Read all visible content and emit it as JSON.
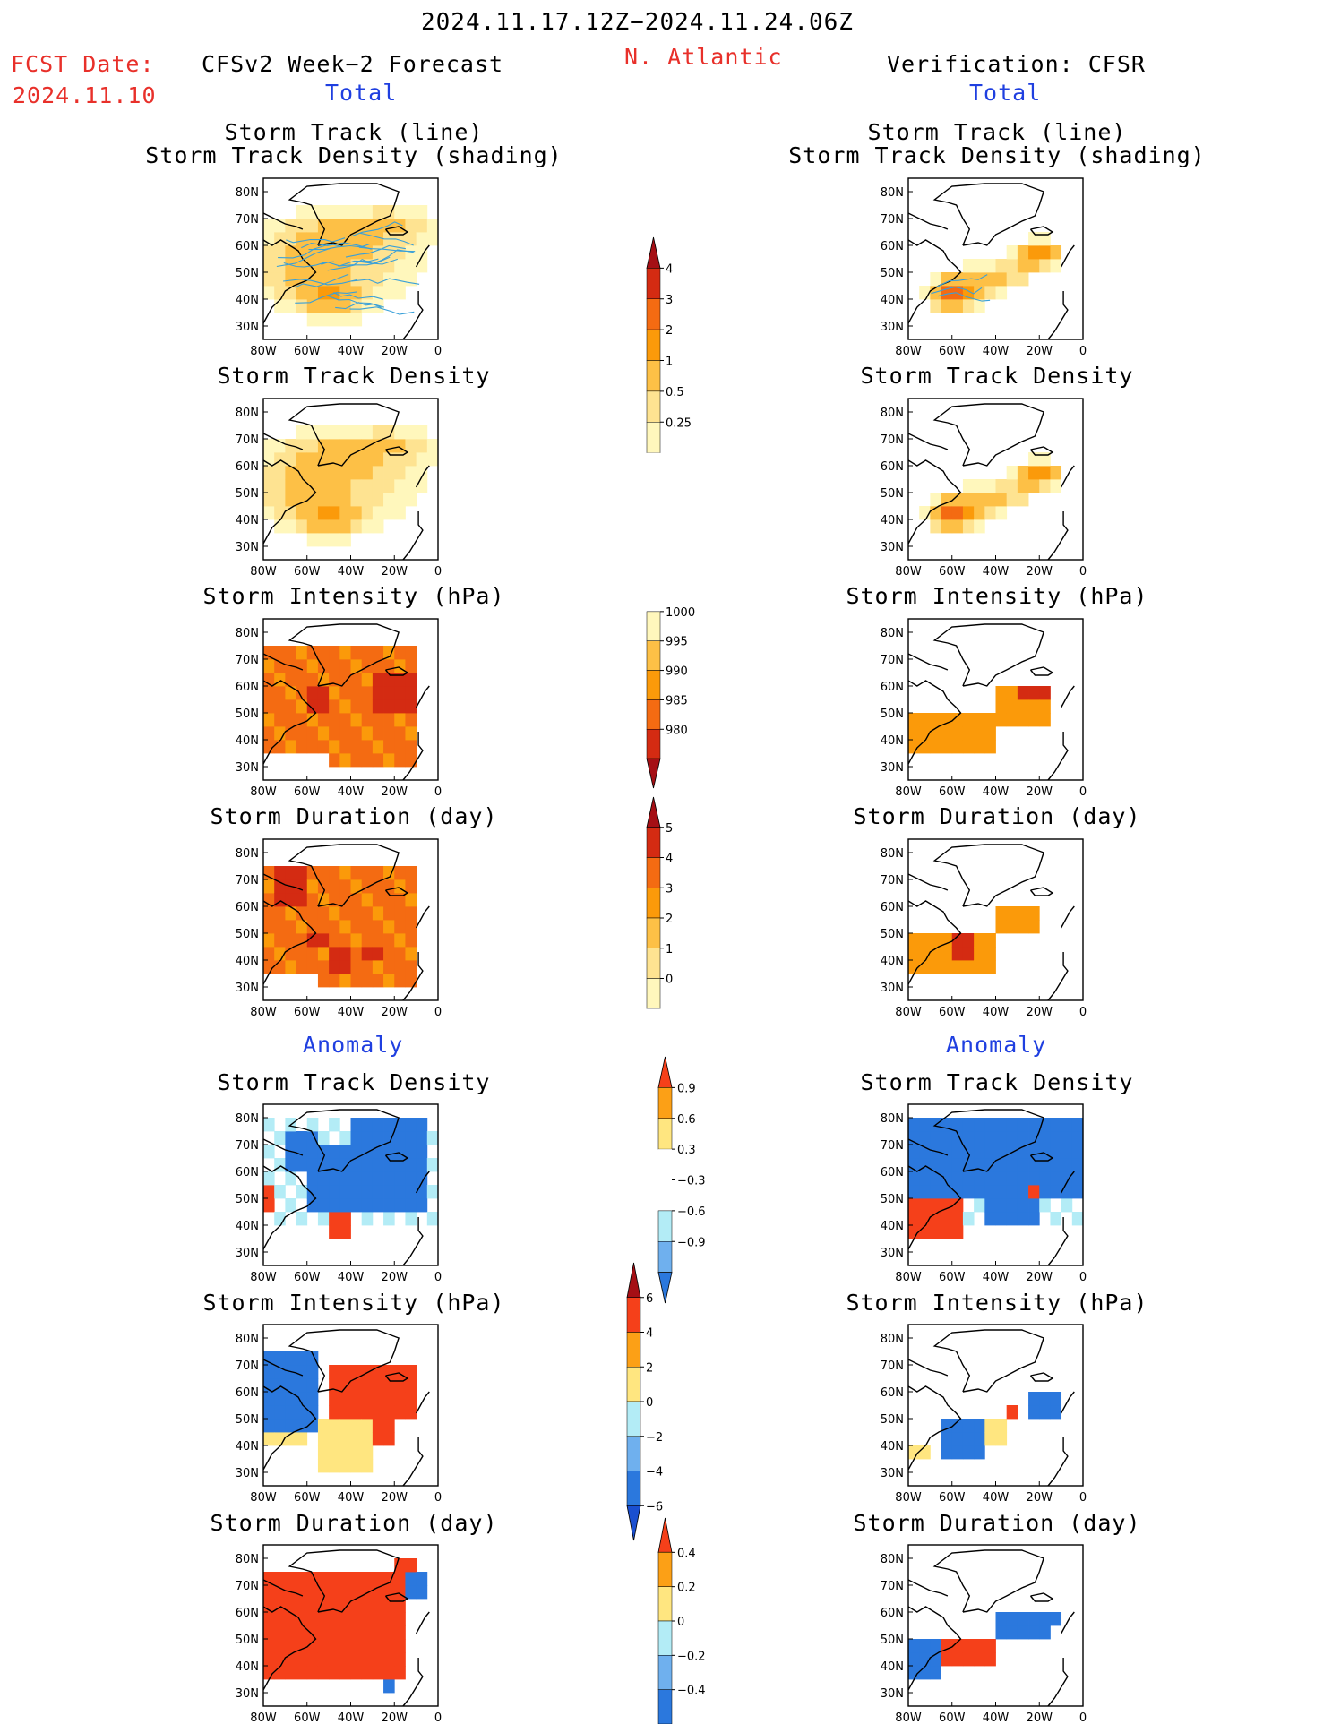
{
  "header": {
    "period": "2024.11.17.12Z−2024.11.24.06Z",
    "fcst_label": "FCST Date:",
    "fcst_date": "2024.11.10",
    "model_title": "CFSv2 Week−2 Forecast",
    "region": "N. Atlantic",
    "verification_title": "Verification: CFSR",
    "total_left": "Total",
    "total_right": "Total",
    "anomaly_left": "Anomaly",
    "anomaly_right": "Anomaly"
  },
  "panel_titles": {
    "track_line": "Storm Track (line)",
    "track_density_shading": "Storm Track Density (shading)",
    "track_density": "Storm Track Density",
    "intensity": "Storm Intensity (hPa)",
    "duration": "Storm Duration (day)"
  },
  "map_axes": {
    "lat_labels": [
      "80N",
      "70N",
      "60N",
      "50N",
      "40N",
      "30N"
    ],
    "lon_labels": [
      "80W",
      "60W",
      "40W",
      "20W",
      "0"
    ]
  },
  "colors": {
    "total": [
      "#fff7bc",
      "#fee391",
      "#fdc046",
      "#fb9a0a",
      "#f46b12",
      "#d42b12",
      "#a50f15"
    ],
    "anom_pos": [
      "#ffe680",
      "#fca016",
      "#f5401a",
      "#a50f15"
    ],
    "anom_neg": [
      "#b3ecf6",
      "#6fb0ee",
      "#2b78dd",
      "#1a4fd0"
    ]
  },
  "colorbars": [
    {
      "id": "total-density",
      "ticks": [
        "4",
        "3",
        "2",
        "1",
        "0.5",
        "0.25"
      ]
    },
    {
      "id": "total-intensity",
      "ticks": [
        "1000",
        "995",
        "990",
        "985",
        "980"
      ]
    },
    {
      "id": "total-duration",
      "ticks": [
        "5",
        "4",
        "3",
        "2",
        "1",
        "0"
      ]
    },
    {
      "id": "anom-density",
      "ticks": [
        "0.9",
        "0.6",
        "0.3",
        "−0.3",
        "−0.6",
        "−0.9"
      ]
    },
    {
      "id": "anom-intensity",
      "ticks": [
        "6",
        "4",
        "2",
        "0",
        "−2",
        "−4",
        "−6"
      ]
    },
    {
      "id": "anom-duration",
      "ticks": [
        "0.4",
        "0.2",
        "0",
        "−0.2",
        "−0.4"
      ]
    }
  ],
  "chart_data": [
    {
      "type": "heatmap",
      "panel": "forecast-total-track",
      "title": "Storm Track (line) Storm Track Density (shading)",
      "blobs": [
        [
          -50,
          41,
          13,
          6,
          1.6
        ],
        [
          -45,
          52,
          32,
          16,
          0.8
        ],
        [
          -40,
          63,
          30,
          9,
          0.7
        ],
        [
          -20,
          68,
          16,
          5,
          0.6
        ],
        [
          -68,
          52,
          12,
          10,
          0.6
        ],
        [
          -55,
          63,
          12,
          6,
          0.5
        ]
      ],
      "tracks": true
    },
    {
      "type": "heatmap",
      "panel": "forecast-total-density",
      "title": "Storm Track Density",
      "blobs": [
        [
          -50,
          41,
          12,
          6,
          1.6
        ],
        [
          -45,
          52,
          32,
          16,
          0.8
        ],
        [
          -40,
          63,
          30,
          9,
          0.7
        ],
        [
          -20,
          68,
          16,
          5,
          0.6
        ],
        [
          -68,
          52,
          12,
          10,
          0.6
        ],
        [
          -55,
          63,
          12,
          6,
          0.5
        ]
      ]
    },
    {
      "type": "heatmap",
      "panel": "forecast-total-intensity",
      "title": "Storm Intensity (hPa)",
      "kind": "intensity",
      "rng": [
        -80,
        -10,
        28,
        73
      ],
      "cut": [
        [
          -80,
          -52,
          28,
          33
        ]
      ],
      "add": [
        [
          -25,
          -8,
          70,
          76
        ]
      ],
      "hot": [
        [
          -30,
          -10,
          52,
          67
        ],
        [
          -60,
          -50,
          50,
          60
        ]
      ]
    },
    {
      "type": "heatmap",
      "panel": "forecast-total-duration",
      "title": "Storm Duration (day)",
      "kind": "duration",
      "rng": [
        -80,
        -10,
        28,
        76
      ],
      "cut": [
        [
          -80,
          -55,
          28,
          33
        ]
      ],
      "add": [],
      "hot": [
        [
          -50,
          -40,
          33,
          43
        ],
        [
          -35,
          -25,
          38,
          45
        ],
        [
          -75,
          -60,
          62,
          76
        ],
        [
          -60,
          -48,
          45,
          52
        ]
      ]
    },
    {
      "type": "heatmap",
      "panel": "verification-total-track",
      "title": "Storm Track (line) Storm Track Density (shading)",
      "blobs": [
        [
          -60,
          42,
          8,
          5,
          3.5
        ],
        [
          -50,
          45,
          10,
          6,
          1.2
        ],
        [
          -36,
          49,
          8,
          4,
          1.0
        ],
        [
          -20,
          57,
          8,
          4,
          2.5
        ],
        [
          -27,
          52,
          7,
          4,
          0.8
        ]
      ],
      "tracks": true
    },
    {
      "type": "heatmap",
      "panel": "verification-total-density",
      "title": "Storm Track Density",
      "blobs": [
        [
          -60,
          42,
          8,
          5,
          3.5
        ],
        [
          -50,
          45,
          10,
          6,
          1.2
        ],
        [
          -36,
          49,
          8,
          4,
          1.0
        ],
        [
          -20,
          57,
          8,
          4,
          2.5
        ],
        [
          -27,
          52,
          7,
          4,
          0.8
        ]
      ]
    },
    {
      "type": "heatmap",
      "panel": "verification-total-intensity",
      "title": "Storm Intensity (hPa)",
      "kind": "intensity",
      "rng": [
        -80,
        -40,
        35,
        50
      ],
      "cut": [],
      "add": [
        [
          -40,
          -15,
          45,
          62
        ]
      ],
      "hot": [
        [
          -28,
          -15,
          53,
          62
        ]
      ]
    },
    {
      "type": "heatmap",
      "panel": "verification-total-duration",
      "title": "Storm Duration (day)",
      "kind": "duration",
      "rng": [
        -80,
        -40,
        33,
        48
      ],
      "cut": [],
      "add": [
        [
          -40,
          -18,
          48,
          62
        ]
      ],
      "hot": [
        [
          -62,
          -48,
          38,
          50
        ]
      ]
    },
    {
      "type": "heatmap",
      "panel": "forecast-anom-density",
      "title": "Storm Track Density",
      "kind": "anom-density",
      "neg": [
        [
          -60,
          -5,
          45,
          68
        ],
        [
          -40,
          -5,
          65,
          80
        ],
        [
          -70,
          -55,
          58,
          75
        ]
      ],
      "pos": [
        [
          -52,
          -38,
          35,
          44
        ],
        [
          -80,
          -73,
          44,
          53
        ]
      ],
      "weakpos": [
        [
          -25,
          -20,
          48,
          52
        ],
        [
          -45,
          -35,
          68,
          72
        ]
      ]
    },
    {
      "type": "heatmap",
      "panel": "forecast-anom-intensity",
      "title": "Storm Intensity (hPa)",
      "kind": "anom-intensity",
      "neg": [
        [
          -80,
          -55,
          45,
          76
        ],
        [
          -35,
          -30,
          43,
          48
        ]
      ],
      "pos": [
        [
          -50,
          -10,
          50,
          72
        ],
        [
          -30,
          -20,
          40,
          50
        ]
      ],
      "weakpos": [
        [
          -55,
          -30,
          32,
          50
        ],
        [
          -80,
          -60,
          38,
          45
        ]
      ]
    },
    {
      "type": "heatmap",
      "panel": "forecast-anom-duration",
      "title": "Storm Duration (day)",
      "kind": "anom-duration",
      "neg": [
        [
          -15,
          -5,
          65,
          75
        ],
        [
          -45,
          -40,
          55,
          60
        ],
        [
          -25,
          -20,
          30,
          40
        ]
      ],
      "pos": [
        [
          -80,
          -15,
          33,
          76
        ],
        [
          -20,
          -10,
          74,
          78
        ]
      ],
      "weakpos": [
        [
          -40,
          -30,
          55,
          62
        ]
      ]
    },
    {
      "type": "heatmap",
      "panel": "verification-anom-density",
      "title": "Storm Track Density",
      "kind": "anom-density",
      "neg": [
        [
          -80,
          -2,
          50,
          80
        ],
        [
          -45,
          -20,
          42,
          50
        ]
      ],
      "pos": [
        [
          -80,
          -55,
          37,
          48
        ],
        [
          -25,
          -18,
          50,
          56
        ]
      ],
      "weakpos": [
        [
          -38,
          -32,
          48,
          52
        ]
      ]
    },
    {
      "type": "heatmap",
      "panel": "verification-anom-intensity",
      "title": "Storm Intensity (hPa)",
      "kind": "anom-intensity",
      "neg": [
        [
          -65,
          -45,
          37,
          50
        ],
        [
          -25,
          -8,
          50,
          58
        ]
      ],
      "pos": [
        [
          -35,
          -28,
          50,
          55
        ]
      ],
      "weakpos": [
        [
          -45,
          -35,
          42,
          48
        ],
        [
          -80,
          -70,
          35,
          42
        ]
      ]
    },
    {
      "type": "heatmap",
      "panel": "verification-anom-duration",
      "title": "Storm Duration (day)",
      "kind": "anom-duration",
      "neg": [
        [
          -80,
          -65,
          35,
          48
        ],
        [
          -40,
          -15,
          48,
          58
        ],
        [
          -25,
          -10,
          55,
          62
        ]
      ],
      "pos": [
        [
          -65,
          -40,
          38,
          52
        ]
      ],
      "weakpos": []
    }
  ]
}
